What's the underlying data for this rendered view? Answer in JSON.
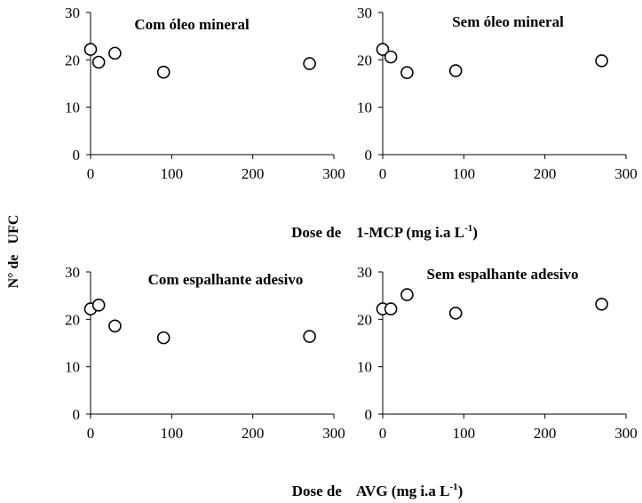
{
  "chart_data": [
    {
      "type": "scatter",
      "title": "Com óleo mineral",
      "x": [
        0,
        10,
        30,
        90,
        270
      ],
      "y": [
        22.2,
        19.5,
        21.4,
        17.4,
        19.2
      ],
      "xlim": [
        0,
        300
      ],
      "ylim": [
        0,
        30
      ],
      "xticks": [
        "0",
        "100",
        "200",
        "300"
      ],
      "yticks": [
        "0",
        "10",
        "20",
        "30"
      ],
      "grid": false
    },
    {
      "type": "scatter",
      "title": "Sem óleo mineral",
      "x": [
        0,
        10,
        30,
        90,
        270
      ],
      "y": [
        22.2,
        20.6,
        17.3,
        17.7,
        19.8
      ],
      "xlim": [
        0,
        300
      ],
      "ylim": [
        0,
        30
      ],
      "xticks": [
        "0",
        "100",
        "200",
        "300"
      ],
      "yticks": [
        "0",
        "10",
        "20",
        "30"
      ],
      "grid": false
    },
    {
      "type": "scatter",
      "title": "Com espalhante adesivo",
      "x": [
        0,
        10,
        30,
        90,
        270
      ],
      "y": [
        22.2,
        23.0,
        18.6,
        16.1,
        16.4
      ],
      "xlim": [
        0,
        300
      ],
      "ylim": [
        0,
        30
      ],
      "xticks": [
        "0",
        "100",
        "200",
        "300"
      ],
      "yticks": [
        "0",
        "10",
        "20",
        "30"
      ],
      "grid": false
    },
    {
      "type": "scatter",
      "title": "Sem espalhante adesivo",
      "x": [
        0,
        10,
        30,
        90,
        270
      ],
      "y": [
        22.2,
        22.2,
        25.2,
        21.3,
        23.2
      ],
      "xlim": [
        0,
        300
      ],
      "ylim": [
        0,
        30
      ],
      "xticks": [
        "0",
        "100",
        "200",
        "300"
      ],
      "yticks": [
        "0",
        "10",
        "20",
        "30"
      ],
      "grid": false
    }
  ],
  "labels": {
    "ylabel": "N° de   UFC",
    "xlabel_top": {
      "prefix": "Dose de    1-MCP (mg i.a L",
      "sup": "-1",
      "suffix": ")"
    },
    "xlabel_bottom": {
      "prefix": "Dose de    AVG (mg i.a L",
      "sup": "-1",
      "suffix": ")"
    }
  },
  "style": {
    "axis_color": "#000000",
    "marker_fill": "#ffffff",
    "marker_stroke": "#000000"
  }
}
